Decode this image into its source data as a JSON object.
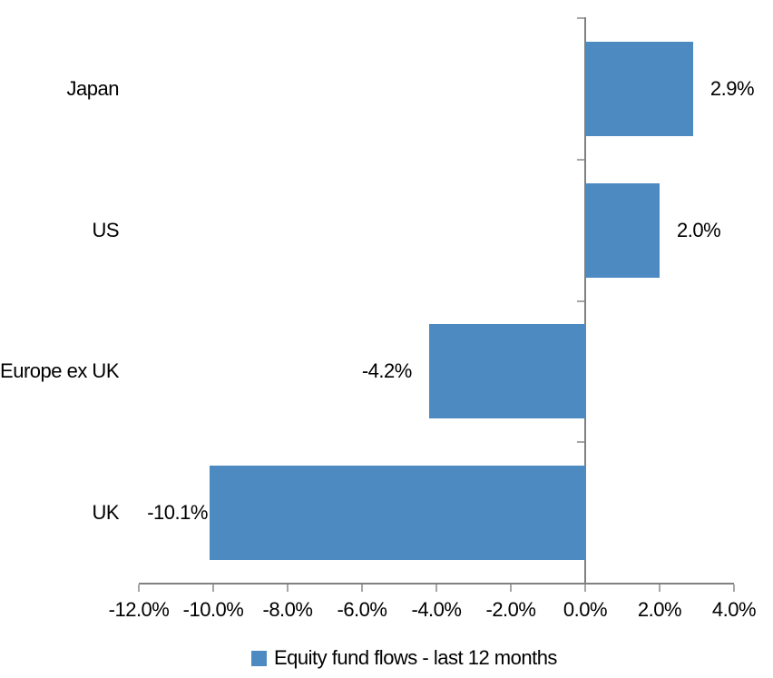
{
  "chart_data": {
    "type": "bar",
    "orientation": "horizontal",
    "title": "",
    "xlabel": "",
    "ylabel": "",
    "categories": [
      "Japan",
      "US",
      "Europe ex UK",
      "UK"
    ],
    "series": [
      {
        "name": "Equity fund flows - last 12 months",
        "values": [
          2.9,
          2.0,
          -4.2,
          -10.1
        ],
        "data_labels": [
          "2.9%",
          "2.0%",
          "-4.2%",
          "-10.1%"
        ]
      }
    ],
    "xlim": [
      -12,
      4
    ],
    "x_tick_values": [
      -12,
      -10,
      -8,
      -6,
      -4,
      -2,
      0,
      2,
      4
    ],
    "x_tick_labels": [
      "-12.0%",
      "-10.0%",
      "-8.0%",
      "-6.0%",
      "-4.0%",
      "-2.0%",
      "0.0%",
      "2.0%",
      "4.0%"
    ],
    "grid": false,
    "legend": {
      "position": "bottom",
      "label": "Equity fund flows - last 12 months"
    },
    "colors": {
      "bar": "#4E8AC2",
      "axis_line": "#808080",
      "tick": "#A6A6A6",
      "text": "#000000",
      "background": "#FFFFFF"
    }
  }
}
